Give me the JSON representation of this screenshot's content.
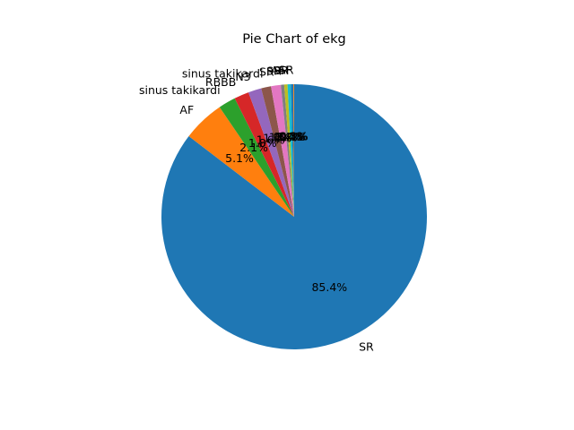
{
  "chart_data": {
    "type": "pie",
    "title": "Pie Chart of ekg",
    "start_angle_deg": 90,
    "direction": "clockwise",
    "slices": [
      {
        "label": "SR",
        "value": 85.4,
        "pct_label": "85.4%",
        "color": "#1f77b4"
      },
      {
        "label": "AF",
        "value": 5.1,
        "pct_label": "5.1%",
        "color": "#ff7f0e"
      },
      {
        "label": "sinus takikardi",
        "value": 2.1,
        "pct_label": "2.1%",
        "color": "#2ca02c"
      },
      {
        "label": "RBBB",
        "value": 1.8,
        "pct_label": "1.8%",
        "color": "#d62728"
      },
      {
        "label": "N3",
        "value": 1.6,
        "pct_label": "1.6%",
        "color": "#9467bd"
      },
      {
        "label": "sinus takikardi",
        "value": 1.2,
        "pct_label": "1.2%",
        "color": "#8c564b"
      },
      {
        "label": "SR",
        "value": 1.2,
        "pct_label": "1.2%",
        "color": "#e377c2"
      },
      {
        "label": "SR",
        "value": 0.4,
        "pct_label": "0.4%",
        "color": "#7f7f7f"
      },
      {
        "label": "AF",
        "value": 0.4,
        "pct_label": "0.4%",
        "color": "#bcbd22"
      },
      {
        "label": "SR",
        "value": 0.4,
        "pct_label": "0.4%",
        "color": "#17becf"
      },
      {
        "label": "AF",
        "value": 0.3,
        "pct_label": "0.3%",
        "color": "#1f77b4"
      },
      {
        "label": "SR",
        "value": 0.1,
        "pct_label": "0.1%",
        "color": "#ff7f0e"
      }
    ]
  }
}
